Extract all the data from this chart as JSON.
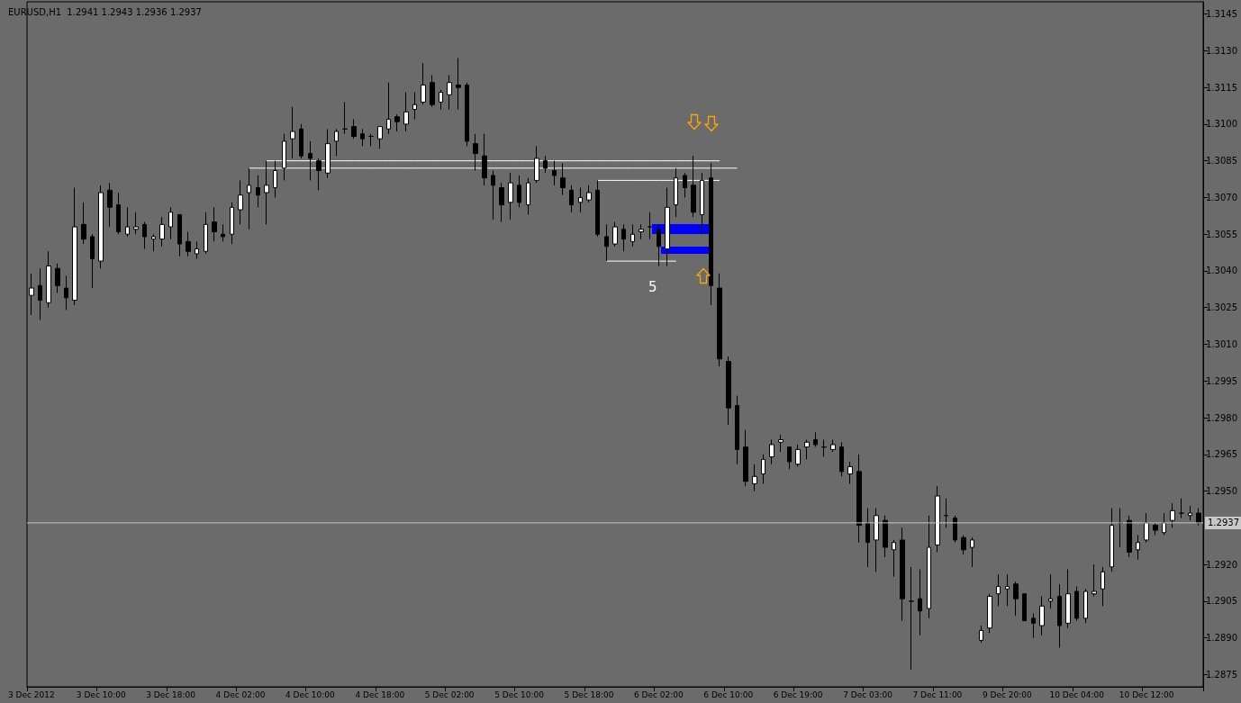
{
  "chart_data": {
    "type": "candlestick",
    "title": "EURUSD,H1  1.2941 1.2943 1.2936 1.2937",
    "categories": [
      "3 Dec 2012",
      null,
      null,
      null,
      null,
      null,
      null,
      null,
      "3 Dec 10:00",
      null,
      null,
      null,
      null,
      null,
      null,
      null,
      "3 Dec 18:00",
      null,
      null,
      null,
      null,
      null,
      null,
      null,
      "4 Dec 02:00",
      null,
      null,
      null,
      null,
      null,
      null,
      null,
      "4 Dec 10:00",
      null,
      null,
      null,
      null,
      null,
      null,
      null,
      "4 Dec 18:00",
      null,
      null,
      null,
      null,
      null,
      null,
      null,
      "5 Dec 02:00",
      null,
      null,
      null,
      null,
      null,
      null,
      null,
      "5 Dec 10:00",
      null,
      null,
      null,
      null,
      null,
      null,
      null,
      "5 Dec 18:00",
      null,
      null,
      null,
      null,
      null,
      null,
      null,
      "6 Dec 02:00",
      null,
      null,
      null,
      null,
      null,
      null,
      null,
      "6 Dec 10:00",
      null,
      null,
      null,
      null,
      null,
      null,
      null,
      "6 Dec 19:00",
      null,
      null,
      null,
      null,
      null,
      null,
      null,
      "7 Dec 03:00",
      null,
      null,
      null,
      null,
      null,
      null,
      null,
      "7 Dec 11:00",
      null,
      null,
      null,
      null,
      null,
      null,
      null,
      "9 Dec 20:00",
      null,
      null,
      null,
      null,
      null,
      null,
      null,
      "10 Dec 04:00",
      null,
      null,
      null,
      null,
      null,
      null,
      null,
      "10 Dec 12:00",
      null,
      null,
      null,
      null,
      null,
      null
    ],
    "ohlc": [
      [
        1.303,
        1.3039,
        1.3022,
        1.3033
      ],
      [
        1.3034,
        1.3041,
        1.302,
        1.3028
      ],
      [
        1.3027,
        1.3048,
        1.3025,
        1.3042
      ],
      [
        1.3041,
        1.3043,
        1.3031,
        1.3034
      ],
      [
        1.3033,
        1.3038,
        1.3024,
        1.3029
      ],
      [
        1.3028,
        1.3074,
        1.3026,
        1.3058
      ],
      [
        1.3059,
        1.3068,
        1.3051,
        1.3053
      ],
      [
        1.3054,
        1.3055,
        1.3033,
        1.3045
      ],
      [
        1.3044,
        1.3075,
        1.3041,
        1.3072
      ],
      [
        1.3073,
        1.3076,
        1.3058,
        1.3066
      ],
      [
        1.3067,
        1.3072,
        1.3055,
        1.3056
      ],
      [
        1.3055,
        1.3066,
        1.3054,
        1.3058
      ],
      [
        1.3057,
        1.3064,
        1.3055,
        1.3058
      ],
      [
        1.3059,
        1.306,
        1.3049,
        1.3054
      ],
      [
        1.3053,
        1.3055,
        1.3048,
        1.3054
      ],
      [
        1.3053,
        1.3062,
        1.305,
        1.3059
      ],
      [
        1.3058,
        1.3066,
        1.3053,
        1.3064
      ],
      [
        1.3063,
        1.3063,
        1.3046,
        1.3051
      ],
      [
        1.3052,
        1.3056,
        1.3046,
        1.3048
      ],
      [
        1.3047,
        1.3052,
        1.3045,
        1.3049
      ],
      [
        1.3048,
        1.3064,
        1.3047,
        1.3059
      ],
      [
        1.306,
        1.3066,
        1.3052,
        1.3056
      ],
      [
        1.3055,
        1.3059,
        1.3052,
        1.3054
      ],
      [
        1.3055,
        1.3068,
        1.3051,
        1.3066
      ],
      [
        1.3065,
        1.3077,
        1.3059,
        1.3071
      ],
      [
        1.3072,
        1.3082,
        1.3057,
        1.3075
      ],
      [
        1.3074,
        1.3079,
        1.3066,
        1.3071
      ],
      [
        1.3072,
        1.3085,
        1.3059,
        1.3075
      ],
      [
        1.3074,
        1.3085,
        1.307,
        1.3081
      ],
      [
        1.3082,
        1.3096,
        1.3077,
        1.3093
      ],
      [
        1.3094,
        1.3107,
        1.3086,
        1.3097
      ],
      [
        1.3098,
        1.31,
        1.3086,
        1.3087
      ],
      [
        1.3088,
        1.3093,
        1.3077,
        1.3086
      ],
      [
        1.3085,
        1.3086,
        1.3073,
        1.3081
      ],
      [
        1.308,
        1.3098,
        1.3078,
        1.3092
      ],
      [
        1.3093,
        1.3098,
        1.3087,
        1.3097
      ],
      [
        1.3098,
        1.3109,
        1.3096,
        1.3098
      ],
      [
        1.3099,
        1.3102,
        1.3094,
        1.3095
      ],
      [
        1.3096,
        1.3098,
        1.3091,
        1.3094
      ],
      [
        1.3095,
        1.3096,
        1.3091,
        1.3095
      ],
      [
        1.3094,
        1.3099,
        1.309,
        1.3099
      ],
      [
        1.3098,
        1.3117,
        1.3096,
        1.3102
      ],
      [
        1.3103,
        1.3104,
        1.3097,
        1.3101
      ],
      [
        1.31,
        1.3113,
        1.3097,
        1.3105
      ],
      [
        1.3106,
        1.3113,
        1.3102,
        1.3108
      ],
      [
        1.3109,
        1.3125,
        1.3108,
        1.3116
      ],
      [
        1.3117,
        1.312,
        1.3107,
        1.3108
      ],
      [
        1.3109,
        1.3114,
        1.3106,
        1.3113
      ],
      [
        1.3112,
        1.312,
        1.3106,
        1.3117
      ],
      [
        1.3116,
        1.3127,
        1.3106,
        1.3115
      ],
      [
        1.3116,
        1.3117,
        1.3091,
        1.3093
      ],
      [
        1.3092,
        1.3096,
        1.3081,
        1.3088
      ],
      [
        1.3087,
        1.3096,
        1.3075,
        1.3078
      ],
      [
        1.3079,
        1.3081,
        1.3061,
        1.3075
      ],
      [
        1.3074,
        1.3076,
        1.306,
        1.3067
      ],
      [
        1.3068,
        1.308,
        1.3061,
        1.3076
      ],
      [
        1.3075,
        1.3079,
        1.3066,
        1.3068
      ],
      [
        1.3067,
        1.3078,
        1.3063,
        1.3076
      ],
      [
        1.3077,
        1.3091,
        1.3076,
        1.3086
      ],
      [
        1.3085,
        1.3087,
        1.308,
        1.3082
      ],
      [
        1.3081,
        1.3085,
        1.3075,
        1.3079
      ],
      [
        1.3078,
        1.3084,
        1.3071,
        1.3074
      ],
      [
        1.3073,
        1.3075,
        1.3064,
        1.3067
      ],
      [
        1.3068,
        1.3074,
        1.3064,
        1.307
      ],
      [
        1.3069,
        1.3075,
        1.3068,
        1.3072
      ],
      [
        1.3073,
        1.3077,
        1.3054,
        1.3055
      ],
      [
        1.3054,
        1.3059,
        1.3044,
        1.305
      ],
      [
        1.3051,
        1.306,
        1.305,
        1.3058
      ],
      [
        1.3057,
        1.3059,
        1.3048,
        1.3053
      ],
      [
        1.3052,
        1.3059,
        1.305,
        1.3055
      ],
      [
        1.3056,
        1.3059,
        1.3053,
        1.3057
      ],
      [
        1.3058,
        1.3064,
        1.3053,
        1.3058
      ],
      [
        1.3057,
        1.3059,
        1.3042,
        1.305
      ],
      [
        1.3049,
        1.3074,
        1.3042,
        1.3066
      ],
      [
        1.3067,
        1.3082,
        1.3062,
        1.3078
      ],
      [
        1.3079,
        1.308,
        1.307,
        1.3074
      ],
      [
        1.3075,
        1.3087,
        1.3062,
        1.3064
      ],
      [
        1.3063,
        1.308,
        1.3055,
        1.3077
      ],
      [
        1.3078,
        1.3084,
        1.3026,
        1.3034
      ],
      [
        1.3033,
        1.3039,
        1.3001,
        1.3004
      ],
      [
        1.3003,
        1.3005,
        1.2977,
        1.2984
      ],
      [
        1.2985,
        1.2989,
        1.2961,
        1.2967
      ],
      [
        1.2968,
        1.2975,
        1.2952,
        1.2954
      ],
      [
        1.2953,
        1.2961,
        1.295,
        1.2956
      ],
      [
        1.2957,
        1.2965,
        1.2953,
        1.2963
      ],
      [
        1.2964,
        1.2971,
        1.2961,
        1.2969
      ],
      [
        1.297,
        1.2973,
        1.2966,
        1.2971
      ],
      [
        1.2968,
        1.2968,
        1.2959,
        1.2962
      ],
      [
        1.2961,
        1.2969,
        1.296,
        1.2967
      ],
      [
        1.2968,
        1.2971,
        1.2963,
        1.297
      ],
      [
        1.2971,
        1.2974,
        1.2968,
        1.2969
      ],
      [
        1.2968,
        1.2971,
        1.2964,
        1.2968
      ],
      [
        1.2967,
        1.2971,
        1.2966,
        1.2969
      ],
      [
        1.2968,
        1.297,
        1.2956,
        1.2958
      ],
      [
        1.2957,
        1.2962,
        1.2953,
        1.296
      ],
      [
        1.2958,
        1.2965,
        1.2929,
        1.2936
      ],
      [
        1.2937,
        1.2943,
        1.2919,
        1.2929
      ],
      [
        1.293,
        1.2943,
        1.2917,
        1.294
      ],
      [
        1.2938,
        1.294,
        1.2923,
        1.2927
      ],
      [
        1.2926,
        1.293,
        1.2915,
        1.2929
      ],
      [
        1.293,
        1.2935,
        1.2897,
        1.2906
      ],
      [
        1.2905,
        1.2919,
        1.2877,
        1.2905
      ],
      [
        1.2906,
        1.2918,
        1.2891,
        1.2901
      ],
      [
        1.2902,
        1.294,
        1.2898,
        1.2927
      ],
      [
        1.2928,
        1.2952,
        1.2925,
        1.2948
      ],
      [
        1.294,
        1.2947,
        1.2935,
        1.294
      ],
      [
        1.2939,
        1.294,
        1.2929,
        1.293
      ],
      [
        1.2931,
        1.2932,
        1.2924,
        1.2926
      ],
      [
        1.2927,
        1.2931,
        1.2919,
        1.293
      ],
      [
        1.2889,
        1.2895,
        1.2888,
        1.2893
      ],
      [
        1.2894,
        1.2908,
        1.2892,
        1.2907
      ],
      [
        1.2908,
        1.2916,
        1.2903,
        1.2911
      ],
      [
        1.291,
        1.2916,
        1.2903,
        1.2911
      ],
      [
        1.2912,
        1.2913,
        1.2899,
        1.2906
      ],
      [
        1.2908,
        1.2908,
        1.2897,
        1.2897
      ],
      [
        1.2898,
        1.29,
        1.289,
        1.2896
      ],
      [
        1.2895,
        1.2907,
        1.2891,
        1.2903
      ],
      [
        1.2905,
        1.2916,
        1.2902,
        1.2906
      ],
      [
        1.2907,
        1.2912,
        1.2886,
        1.2895
      ],
      [
        1.2896,
        1.2918,
        1.2894,
        1.2908
      ],
      [
        1.2909,
        1.2911,
        1.2897,
        1.2898
      ],
      [
        1.2898,
        1.291,
        1.2896,
        1.2909
      ],
      [
        1.2908,
        1.292,
        1.2907,
        1.2909
      ],
      [
        1.291,
        1.2919,
        1.2903,
        1.2917
      ],
      [
        1.2919,
        1.2943,
        1.2917,
        1.2936
      ],
      [
        1.2937,
        1.2943,
        1.2927,
        1.2937
      ],
      [
        1.2938,
        1.294,
        1.2923,
        1.2925
      ],
      [
        1.2926,
        1.2932,
        1.2922,
        1.2929
      ],
      [
        1.293,
        1.2941,
        1.2929,
        1.2937
      ],
      [
        1.2936,
        1.2937,
        1.2932,
        1.2934
      ],
      [
        1.2933,
        1.2941,
        1.2932,
        1.2937
      ],
      [
        1.2938,
        1.2945,
        1.2935,
        1.2942
      ],
      [
        1.2941,
        1.2947,
        1.2939,
        1.2941
      ],
      [
        1.294,
        1.2944,
        1.2938,
        1.2941
      ],
      [
        1.2941,
        1.2943,
        1.2936,
        1.2937
      ]
    ],
    "series": [
      {
        "type": "line",
        "color": "#ffffff",
        "values": [
          null,
          null,
          null,
          null,
          null,
          null,
          null,
          null,
          null,
          null,
          null,
          null,
          null,
          null,
          null,
          null,
          null,
          null,
          null,
          null,
          null,
          null,
          null,
          null,
          null,
          null,
          null,
          1.3085,
          1.3085,
          1.3085,
          1.3085,
          1.3085,
          1.3085,
          1.3085,
          1.3085,
          1.3085,
          1.3085,
          1.3085,
          1.3085,
          1.3085,
          1.3085,
          1.3085,
          1.3085,
          1.3085,
          1.3085,
          1.3085,
          1.3085,
          1.3085,
          1.3085,
          1.3085,
          1.3085,
          1.3085,
          1.3085,
          1.3085,
          1.3085,
          1.3085,
          1.3085,
          1.3085,
          1.3085,
          1.3085,
          1.3085,
          1.3085,
          1.3085,
          1.3085,
          1.3085,
          1.3085,
          1.3085,
          1.3085,
          1.3085,
          1.3085,
          1.3085,
          1.3085,
          1.3085,
          1.3085,
          1.3085,
          1.3085,
          1.3085,
          1.3085,
          1.3085,
          1.3085,
          null,
          null,
          null,
          null,
          null,
          null,
          null,
          null,
          null,
          null,
          null,
          null,
          null,
          null,
          null,
          null,
          null,
          null,
          null,
          null,
          null,
          null,
          null,
          null,
          null,
          null,
          null,
          null,
          null,
          null,
          null,
          null,
          null,
          null,
          null,
          null,
          null,
          null,
          null,
          null,
          null,
          null,
          null,
          null,
          null,
          null,
          null,
          null,
          null,
          null,
          null,
          null,
          null,
          null,
          null
        ]
      },
      {
        "type": "line",
        "color": "#ffffff",
        "values": [
          null,
          null,
          null,
          null,
          null,
          null,
          null,
          null,
          null,
          null,
          null,
          null,
          null,
          null,
          null,
          null,
          null,
          null,
          null,
          null,
          null,
          null,
          null,
          null,
          null,
          1.3082,
          1.3082,
          1.3082,
          1.3082,
          1.3082,
          1.3082,
          1.3082,
          1.3082,
          1.3082,
          1.3082,
          1.3082,
          1.3082,
          1.3082,
          1.3082,
          1.3082,
          1.3082,
          1.3082,
          1.3082,
          1.3082,
          1.3082,
          1.3082,
          1.3082,
          1.3082,
          1.3082,
          1.3082,
          1.3082,
          1.3082,
          1.3082,
          1.3082,
          1.3082,
          1.3082,
          1.3082,
          1.3082,
          1.3082,
          1.3082,
          1.3082,
          1.3082,
          1.3082,
          1.3082,
          1.3082,
          1.3082,
          1.3082,
          1.3082,
          1.3082,
          1.3082,
          1.3082,
          1.3082,
          1.3082,
          1.3082,
          1.3082,
          1.3082,
          1.3082,
          1.3082,
          1.3082,
          1.3082,
          1.3082,
          1.3082,
          null,
          null,
          null,
          null,
          null,
          null,
          null,
          null,
          null,
          null,
          null,
          null,
          null,
          null,
          null,
          null,
          null,
          null,
          null,
          null,
          null,
          null,
          null,
          null,
          null,
          null,
          null,
          null,
          null,
          null,
          null,
          null,
          null,
          null,
          null,
          null,
          null,
          null,
          null,
          null,
          null,
          null,
          null,
          null,
          null,
          null,
          null,
          null,
          null,
          null,
          null,
          null,
          null
        ]
      },
      {
        "type": "line",
        "color": "#ffffff",
        "values": [
          null,
          null,
          null,
          null,
          null,
          null,
          null,
          null,
          null,
          null,
          null,
          null,
          null,
          null,
          null,
          null,
          null,
          null,
          null,
          null,
          null,
          null,
          null,
          null,
          null,
          null,
          null,
          null,
          null,
          null,
          null,
          null,
          null,
          null,
          null,
          null,
          null,
          null,
          null,
          null,
          null,
          null,
          null,
          null,
          null,
          null,
          null,
          null,
          null,
          null,
          null,
          null,
          null,
          null,
          null,
          null,
          null,
          null,
          null,
          null,
          null,
          null,
          null,
          null,
          null,
          1.3077,
          1.3077,
          1.3077,
          1.3077,
          1.3077,
          1.3077,
          1.3077,
          1.3077,
          1.3077,
          1.3077,
          1.3077,
          1.3077,
          1.3077,
          1.3077,
          1.3077,
          null,
          null,
          null,
          null,
          null,
          null,
          null,
          null,
          null,
          null,
          null,
          null,
          null,
          null,
          null,
          null,
          null,
          null,
          null,
          null,
          null,
          null,
          null,
          null,
          null,
          null,
          null,
          null,
          null,
          null,
          null,
          null,
          null,
          null,
          null,
          null,
          null,
          null,
          null,
          null,
          null,
          null,
          null,
          null,
          null,
          null,
          null,
          null,
          null,
          null,
          null,
          null,
          null,
          null,
          null
        ]
      },
      {
        "type": "line",
        "color": "#ffffff",
        "values": [
          null,
          null,
          null,
          null,
          null,
          null,
          null,
          null,
          null,
          null,
          null,
          null,
          null,
          null,
          null,
          null,
          null,
          null,
          null,
          null,
          null,
          null,
          null,
          null,
          null,
          null,
          null,
          null,
          null,
          null,
          null,
          null,
          null,
          null,
          null,
          null,
          null,
          null,
          null,
          null,
          null,
          null,
          null,
          null,
          null,
          null,
          null,
          null,
          null,
          null,
          null,
          null,
          null,
          null,
          null,
          null,
          null,
          null,
          null,
          null,
          null,
          null,
          null,
          null,
          null,
          null,
          1.3044,
          1.3044,
          1.3044,
          1.3044,
          1.3044,
          1.3044,
          1.3044,
          1.3044,
          1.3044,
          null,
          null,
          null,
          null,
          null,
          null,
          null,
          null,
          null,
          null,
          null,
          null,
          null,
          null,
          null,
          null,
          null,
          null,
          null,
          null,
          null,
          null,
          null,
          null,
          null,
          null,
          null,
          null,
          null,
          null,
          null,
          null,
          null,
          null,
          null,
          null,
          null,
          null,
          null,
          null,
          null,
          null,
          null,
          null,
          null,
          null,
          null,
          null,
          null,
          null,
          null,
          null,
          null,
          null,
          null,
          null,
          null,
          null,
          null,
          null
        ]
      }
    ],
    "ylim": [
      1.287,
      1.315
    ],
    "yticks": [
      {
        "value": 1.2875,
        "label": "1.2875"
      },
      {
        "value": 1.289,
        "label": "1.2890"
      },
      {
        "value": 1.2905,
        "label": "1.2905"
      },
      {
        "value": 1.292,
        "label": "1.2920"
      },
      {
        "value": 1.295,
        "label": "1.2950"
      },
      {
        "value": 1.2965,
        "label": "1.2965"
      },
      {
        "value": 1.298,
        "label": "1.2980"
      },
      {
        "value": 1.2995,
        "label": "1.2995"
      },
      {
        "value": 1.301,
        "label": "1.3010"
      },
      {
        "value": 1.3025,
        "label": "1.3025"
      },
      {
        "value": 1.304,
        "label": "1.3040"
      },
      {
        "value": 1.3055,
        "label": "1.3055"
      },
      {
        "value": 1.307,
        "label": "1.3070"
      },
      {
        "value": 1.3085,
        "label": "1.3085"
      },
      {
        "value": 1.31,
        "label": "1.3100"
      },
      {
        "value": 1.3115,
        "label": "1.3115"
      },
      {
        "value": 1.313,
        "label": "1.3130"
      },
      {
        "value": 1.3145,
        "label": "1.3145"
      }
    ],
    "grid": false,
    "ref_lines": [
      {
        "axis": "y",
        "value": 1.2937,
        "label": "1.2937",
        "color": "#c8c8c8"
      }
    ],
    "annotations": [
      "5"
    ]
  }
}
